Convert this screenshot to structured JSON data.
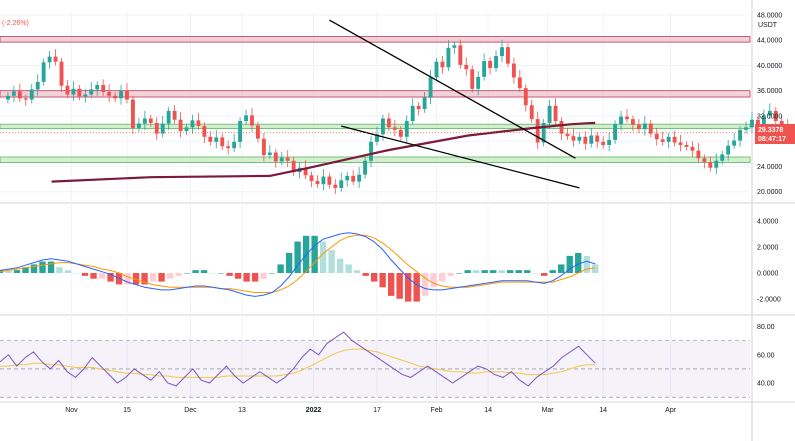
{
  "header": {
    "change_text": "(-2.26%)"
  },
  "colors": {
    "up": "#26a69a",
    "down": "#ef5350",
    "ma": "#7b1a3c",
    "resistance_zone": "#e8b4bb",
    "support_zone": "#b7e4b0",
    "macd_line": "#2962ff",
    "signal_line": "#ff9800",
    "rsi_line": "#7e57c2",
    "rsi_ma": "#f5c842",
    "trendline": "#000000",
    "price_tag": "#ef5350"
  },
  "price_tag": {
    "price": "29.3378",
    "countdown": "08:47:17"
  },
  "chart_data": [
    {
      "type": "candlestick",
      "unit": "USDT",
      "ylim": [
        19,
        48
      ],
      "y_ticks": [
        20,
        24,
        28,
        32,
        36,
        40,
        44,
        48
      ],
      "y_tick_labels": [
        "20.0000",
        "24.0000",
        "28.0000",
        "32.0000",
        "36.0000",
        "40.0000",
        "44.0000",
        "48.0000"
      ],
      "x_labels": [
        "Nov",
        "15",
        "Dec",
        "13",
        "2022",
        "17",
        "Feb",
        "14",
        "Mar",
        "14",
        "Apr"
      ],
      "x_label_days": [
        0,
        14,
        30,
        43,
        61,
        77,
        92,
        105,
        120,
        134,
        151
      ],
      "x_range_days": [
        -18,
        171
      ],
      "closes": [
        35.2,
        35.9,
        34.8,
        34.6,
        36.2,
        37.4,
        40.5,
        41.4,
        40.6,
        36.8,
        35.4,
        36.3,
        35.1,
        35.4,
        36.2,
        36.9,
        35.8,
        35.2,
        34.8,
        36.0,
        34.6,
        30.1,
        30.8,
        31.6,
        30.9,
        29.2,
        30.8,
        32.8,
        31.4,
        29.6,
        30.2,
        31.3,
        30.4,
        28.7,
        27.9,
        28.6,
        27.2,
        26.9,
        27.9,
        31.2,
        32.1,
        30.5,
        28.4,
        25.8,
        26.2,
        24.8,
        25.4,
        24.9,
        23.1,
        23.8,
        22.6,
        21.7,
        21.2,
        22.4,
        21.1,
        20.6,
        21.8,
        22.5,
        21.6,
        22.7,
        24.9,
        27.9,
        29.1,
        31.6,
        30.2,
        29.8,
        28.7,
        31.2,
        33.6,
        33.1,
        34.9,
        38.1,
        40.6,
        39.7,
        42.8,
        43.2,
        40.1,
        39.4,
        36.3,
        38.2,
        40.7,
        39.6,
        41.5,
        42.9,
        40.3,
        38.1,
        36.4,
        33.7,
        31.5,
        27.8,
        30.9,
        33.6,
        31.2,
        29.2,
        28.8,
        28.1,
        28.7,
        27.6,
        28.9,
        27.9,
        27.4,
        28.2,
        30.7,
        31.9,
        31.5,
        30.6,
        29.9,
        30.8,
        29.2,
        28.3,
        27.9,
        28.7,
        27.8,
        27.4,
        27.1,
        26.5,
        25.3,
        24.7,
        23.8,
        24.9,
        25.9,
        27.3,
        28.1,
        29.8,
        30.2,
        31.4,
        30.6,
        32.1,
        32.8,
        31.2,
        30.3,
        29.34
      ],
      "opens": [
        34.6,
        35.2,
        35.9,
        34.8,
        34.6,
        36.2,
        37.4,
        40.5,
        41.4,
        40.6,
        36.8,
        35.4,
        36.3,
        35.1,
        35.4,
        36.2,
        36.9,
        35.8,
        35.2,
        34.8,
        36.0,
        34.6,
        30.1,
        30.8,
        31.6,
        30.9,
        29.2,
        30.8,
        32.8,
        31.4,
        29.6,
        30.2,
        31.3,
        30.4,
        28.7,
        27.9,
        28.6,
        27.2,
        26.9,
        27.9,
        31.2,
        32.1,
        30.5,
        28.4,
        25.8,
        26.2,
        24.8,
        25.4,
        24.9,
        23.1,
        23.8,
        22.6,
        21.7,
        21.2,
        22.4,
        21.1,
        20.6,
        21.8,
        22.5,
        21.6,
        22.7,
        24.9,
        27.9,
        29.1,
        31.6,
        30.2,
        29.8,
        28.7,
        31.2,
        33.6,
        33.1,
        34.9,
        38.1,
        40.6,
        39.7,
        42.8,
        43.2,
        40.1,
        39.4,
        36.3,
        38.2,
        40.7,
        39.6,
        41.5,
        42.9,
        40.3,
        38.1,
        36.4,
        33.7,
        31.5,
        27.8,
        30.9,
        33.6,
        31.2,
        29.2,
        28.8,
        28.1,
        28.7,
        27.6,
        28.9,
        27.9,
        27.4,
        28.2,
        30.7,
        31.9,
        31.5,
        30.6,
        29.9,
        30.8,
        29.2,
        28.3,
        27.9,
        28.7,
        27.8,
        27.4,
        27.1,
        26.5,
        25.3,
        24.7,
        23.8,
        24.9,
        25.9,
        27.3,
        28.1,
        29.8,
        30.2,
        31.4,
        30.6,
        32.1,
        32.8,
        31.2,
        30.3
      ],
      "ma_series": [
        {
          "day": -5,
          "value": 21.6
        },
        {
          "day": 20,
          "value": 22.3
        },
        {
          "day": 50,
          "value": 22.5
        },
        {
          "day": 60,
          "value": 23.8
        },
        {
          "day": 80,
          "value": 26.6
        },
        {
          "day": 100,
          "value": 28.9
        },
        {
          "day": 115,
          "value": 30.0
        },
        {
          "day": 126,
          "value": 30.7
        },
        {
          "day": 132,
          "value": 30.9
        }
      ],
      "zones": [
        {
          "name": "resistance-top",
          "from": 43.7,
          "to": 44.6,
          "kind": "resistance"
        },
        {
          "name": "resistance-mid",
          "from": 35.0,
          "to": 36.0,
          "kind": "resistance"
        },
        {
          "name": "support-upper",
          "from": 30.0,
          "to": 30.7,
          "kind": "support"
        },
        {
          "name": "support-lower",
          "from": 24.6,
          "to": 25.5,
          "kind": "support"
        }
      ],
      "trendlines": [
        {
          "x1": 65,
          "y1": 47.2,
          "x2": 127,
          "y2": 25.3
        },
        {
          "x1": 68,
          "y1": 30.4,
          "x2": 128,
          "y2": 20.6
        }
      ]
    },
    {
      "type": "macd",
      "ylim": [
        -3,
        5
      ],
      "y_ticks": [
        -2,
        0,
        2,
        4
      ],
      "y_tick_labels": [
        "-2.0000",
        "0.0000",
        "2.0000",
        "4.0000"
      ],
      "macd": [
        0.2,
        0.3,
        0.4,
        0.6,
        0.8,
        1.0,
        1.1,
        1.0,
        0.9,
        0.7,
        0.5,
        0.3,
        0.1,
        -0.1,
        -0.4,
        -0.7,
        -0.9,
        -1.1,
        -1.2,
        -1.3,
        -1.3,
        -1.2,
        -1.1,
        -1.0,
        -1.0,
        -1.1,
        -1.2,
        -1.3,
        -1.5,
        -1.7,
        -1.8,
        -1.7,
        -1.5,
        -1.0,
        -0.3,
        0.6,
        1.4,
        2.1,
        2.6,
        2.8,
        3.0,
        3.1,
        3.0,
        2.8,
        2.4,
        1.8,
        1.0,
        0.3,
        -0.4,
        -0.9,
        -1.2,
        -1.3,
        -1.3,
        -1.2,
        -1.1,
        -1.0,
        -0.9,
        -0.8,
        -0.7,
        -0.6,
        -0.6,
        -0.6,
        -0.6,
        -0.7,
        -0.8,
        -0.6,
        -0.2,
        0.3,
        0.7,
        0.9,
        0.7
      ],
      "signal": [
        0.1,
        0.2,
        0.3,
        0.4,
        0.5,
        0.6,
        0.7,
        0.8,
        0.8,
        0.7,
        0.6,
        0.5,
        0.3,
        0.2,
        0.0,
        -0.3,
        -0.5,
        -0.7,
        -0.9,
        -1.0,
        -1.1,
        -1.1,
        -1.1,
        -1.1,
        -1.1,
        -1.1,
        -1.2,
        -1.2,
        -1.3,
        -1.4,
        -1.5,
        -1.5,
        -1.5,
        -1.3,
        -1.0,
        -0.5,
        0.1,
        0.8,
        1.5,
        2.0,
        2.5,
        2.8,
        2.9,
        2.9,
        2.7,
        2.3,
        1.8,
        1.2,
        0.6,
        0.1,
        -0.4,
        -0.8,
        -1.0,
        -1.1,
        -1.1,
        -1.1,
        -1.0,
        -0.9,
        -0.8,
        -0.7,
        -0.7,
        -0.7,
        -0.7,
        -0.7,
        -0.7,
        -0.7,
        -0.5,
        -0.3,
        0.0,
        0.3,
        0.4
      ]
    },
    {
      "type": "rsi",
      "ylim": [
        28,
        86
      ],
      "y_ticks": [
        40,
        60,
        80
      ],
      "y_tick_labels": [
        "40.00",
        "60.00",
        "80.00"
      ],
      "bands": [
        30,
        50,
        70
      ],
      "rsi": [
        55,
        60,
        52,
        58,
        62,
        55,
        50,
        56,
        48,
        44,
        50,
        58,
        52,
        46,
        40,
        44,
        50,
        46,
        42,
        48,
        40,
        38,
        44,
        50,
        42,
        40,
        46,
        52,
        45,
        40,
        44,
        48,
        44,
        40,
        44,
        50,
        58,
        64,
        60,
        68,
        72,
        76,
        70,
        66,
        62,
        58,
        54,
        50,
        46,
        44,
        48,
        52,
        48,
        44,
        40,
        44,
        48,
        52,
        50,
        46,
        44,
        48,
        42,
        38,
        44,
        48,
        52,
        58,
        62,
        66,
        60,
        54
      ],
      "rsi_ma": [
        52,
        52,
        53,
        53,
        54,
        54,
        53,
        53,
        52,
        51,
        51,
        51,
        50,
        49,
        48,
        47,
        47,
        46,
        46,
        45,
        45,
        44,
        44,
        44,
        44,
        44,
        44,
        45,
        45,
        45,
        45,
        45,
        45,
        45,
        46,
        47,
        49,
        52,
        55,
        58,
        61,
        63,
        64,
        64,
        63,
        62,
        60,
        58,
        56,
        54,
        52,
        51,
        50,
        49,
        48,
        48,
        47,
        47,
        48,
        48,
        48,
        47,
        47,
        46,
        46,
        46,
        47,
        48,
        50,
        52,
        53,
        53
      ]
    }
  ]
}
